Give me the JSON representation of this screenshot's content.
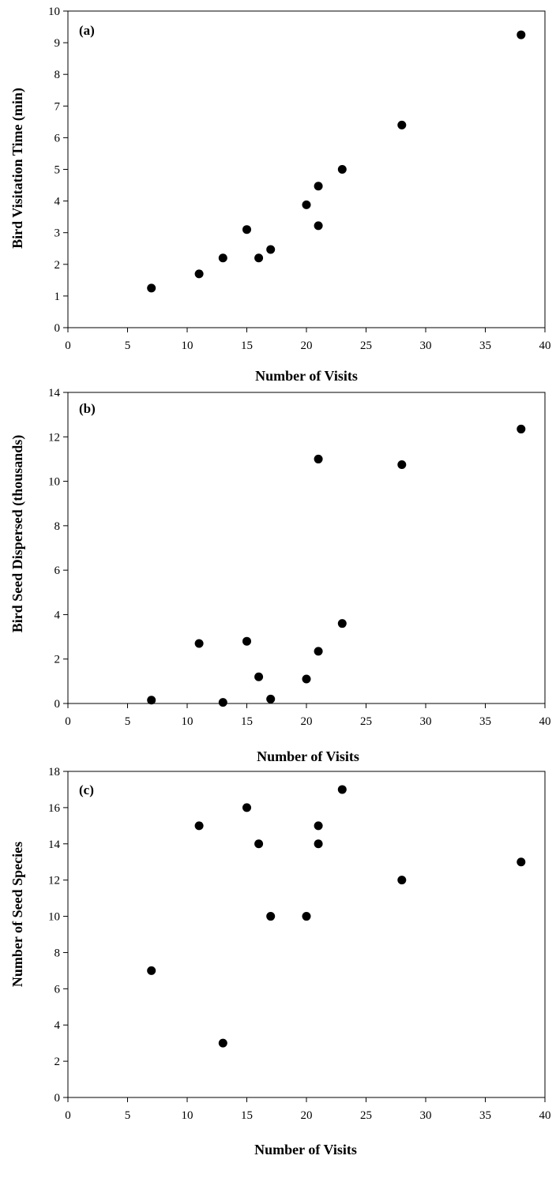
{
  "chart_data": [
    {
      "type": "scatter",
      "panel_label": "(a)",
      "xlabel": "Number of Visits",
      "ylabel": "Bird Visitation Time (min)",
      "xlim": [
        0,
        40
      ],
      "ylim": [
        0,
        10
      ],
      "xticks": [
        "0",
        "5",
        "10",
        "15",
        "20",
        "25",
        "30",
        "35",
        "40"
      ],
      "yticks": [
        "0",
        "1",
        "2",
        "3",
        "4",
        "5",
        "6",
        "7",
        "8",
        "9",
        "10"
      ],
      "grid": false,
      "legend": "none",
      "points": [
        {
          "x": 7,
          "y": 1.25
        },
        {
          "x": 11,
          "y": 1.7
        },
        {
          "x": 13,
          "y": 2.2
        },
        {
          "x": 15,
          "y": 3.1
        },
        {
          "x": 16,
          "y": 2.2
        },
        {
          "x": 17,
          "y": 2.47
        },
        {
          "x": 20,
          "y": 3.88
        },
        {
          "x": 21,
          "y": 4.47
        },
        {
          "x": 21,
          "y": 3.22
        },
        {
          "x": 23,
          "y": 5.0
        },
        {
          "x": 28,
          "y": 6.4
        },
        {
          "x": 38,
          "y": 9.25
        }
      ]
    },
    {
      "type": "scatter",
      "panel_label": "(b)",
      "xlabel": "Number of Visits",
      "ylabel": "Bird Seed Dispersed (thousands)",
      "xlim": [
        0,
        40
      ],
      "ylim": [
        0,
        14
      ],
      "xticks": [
        "0",
        "5",
        "10",
        "15",
        "20",
        "25",
        "30",
        "35",
        "40"
      ],
      "yticks": [
        "0",
        "2",
        "4",
        "6",
        "8",
        "10",
        "12",
        "14"
      ],
      "grid": false,
      "legend": "none",
      "points": [
        {
          "x": 7,
          "y": 0.15
        },
        {
          "x": 11,
          "y": 2.7
        },
        {
          "x": 13,
          "y": 0.05
        },
        {
          "x": 15,
          "y": 2.8
        },
        {
          "x": 16,
          "y": 1.2
        },
        {
          "x": 17,
          "y": 0.2
        },
        {
          "x": 20,
          "y": 1.1
        },
        {
          "x": 21,
          "y": 2.35
        },
        {
          "x": 21,
          "y": 11.0
        },
        {
          "x": 23,
          "y": 3.6
        },
        {
          "x": 28,
          "y": 10.75
        },
        {
          "x": 38,
          "y": 12.35
        }
      ]
    },
    {
      "type": "scatter",
      "panel_label": "(c)",
      "xlabel": "Number of Visits",
      "ylabel": "Number of Seed Species",
      "xlim": [
        0,
        40
      ],
      "ylim": [
        0,
        18
      ],
      "xticks": [
        "0",
        "5",
        "10",
        "15",
        "20",
        "25",
        "30",
        "35",
        "40"
      ],
      "yticks": [
        "0",
        "2",
        "4",
        "6",
        "8",
        "10",
        "12",
        "14",
        "16",
        "18"
      ],
      "grid": false,
      "legend": "none",
      "points": [
        {
          "x": 7,
          "y": 7
        },
        {
          "x": 11,
          "y": 15
        },
        {
          "x": 13,
          "y": 3
        },
        {
          "x": 15,
          "y": 16
        },
        {
          "x": 16,
          "y": 14
        },
        {
          "x": 17,
          "y": 10
        },
        {
          "x": 20,
          "y": 10
        },
        {
          "x": 21,
          "y": 15
        },
        {
          "x": 21,
          "y": 14
        },
        {
          "x": 23,
          "y": 17
        },
        {
          "x": 28,
          "y": 12
        },
        {
          "x": 38,
          "y": 13
        }
      ]
    }
  ]
}
